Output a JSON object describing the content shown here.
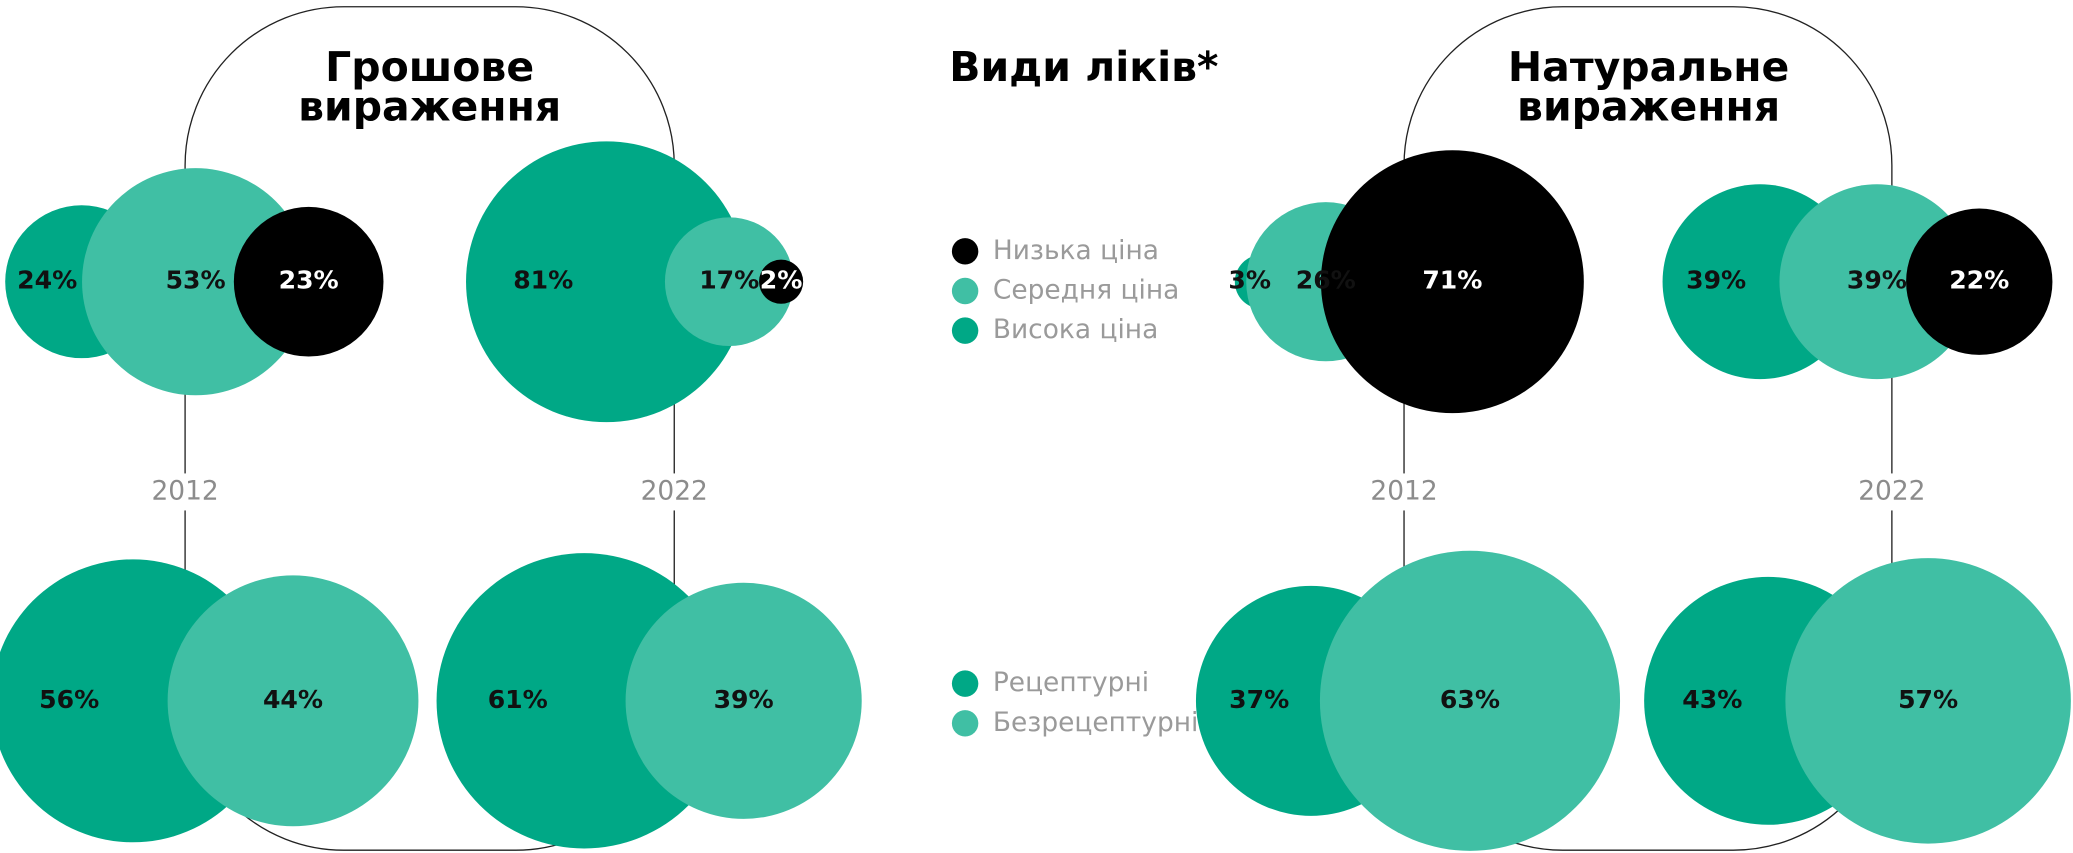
{
  "title": "Види ліків*",
  "chart_data": [
    {
      "type": "bubble",
      "title": "Грошове вираження",
      "categories": [
        "2012",
        "2022"
      ],
      "series": [
        {
          "name": "Висока ціна",
          "color": "#00a886",
          "values": [
            24,
            81
          ],
          "value_labels": [
            "24%",
            "81%"
          ]
        },
        {
          "name": "Середня ціна",
          "color": "#40bfa4",
          "values": [
            53,
            17
          ],
          "value_labels": [
            "53%",
            "17%"
          ]
        },
        {
          "name": "Низька ціна",
          "color": "#000000",
          "values": [
            23,
            2
          ],
          "value_labels": [
            "23%",
            "2%"
          ]
        }
      ],
      "series2": [
        {
          "name": "Рецептурні",
          "color": "#00a886",
          "values": [
            56,
            61
          ],
          "value_labels": [
            "56%",
            "61%"
          ]
        },
        {
          "name": "Безрецептурні",
          "color": "#40bfa4",
          "values": [
            44,
            39
          ],
          "value_labels": [
            "44%",
            "39%"
          ]
        }
      ]
    },
    {
      "type": "bubble",
      "title": "Натуральне вираження",
      "categories": [
        "2012",
        "2022"
      ],
      "series": [
        {
          "name": "Висока ціна",
          "color": "#00a886",
          "values": [
            3,
            39
          ],
          "value_labels": [
            "3%",
            "39%"
          ]
        },
        {
          "name": "Середня ціна",
          "color": "#40bfa4",
          "values": [
            26,
            39
          ],
          "value_labels": [
            "26%",
            "39%"
          ]
        },
        {
          "name": "Низька ціна",
          "color": "#000000",
          "values": [
            71,
            22
          ],
          "value_labels": [
            "71%",
            "22%"
          ]
        }
      ],
      "series2": [
        {
          "name": "Рецептурні",
          "color": "#00a886",
          "values": [
            37,
            43
          ],
          "value_labels": [
            "37%",
            "43%"
          ]
        },
        {
          "name": "Безрецептурні",
          "color": "#40bfa4",
          "values": [
            63,
            57
          ],
          "value_labels": [
            "63%",
            "57%"
          ]
        }
      ]
    }
  ]
}
